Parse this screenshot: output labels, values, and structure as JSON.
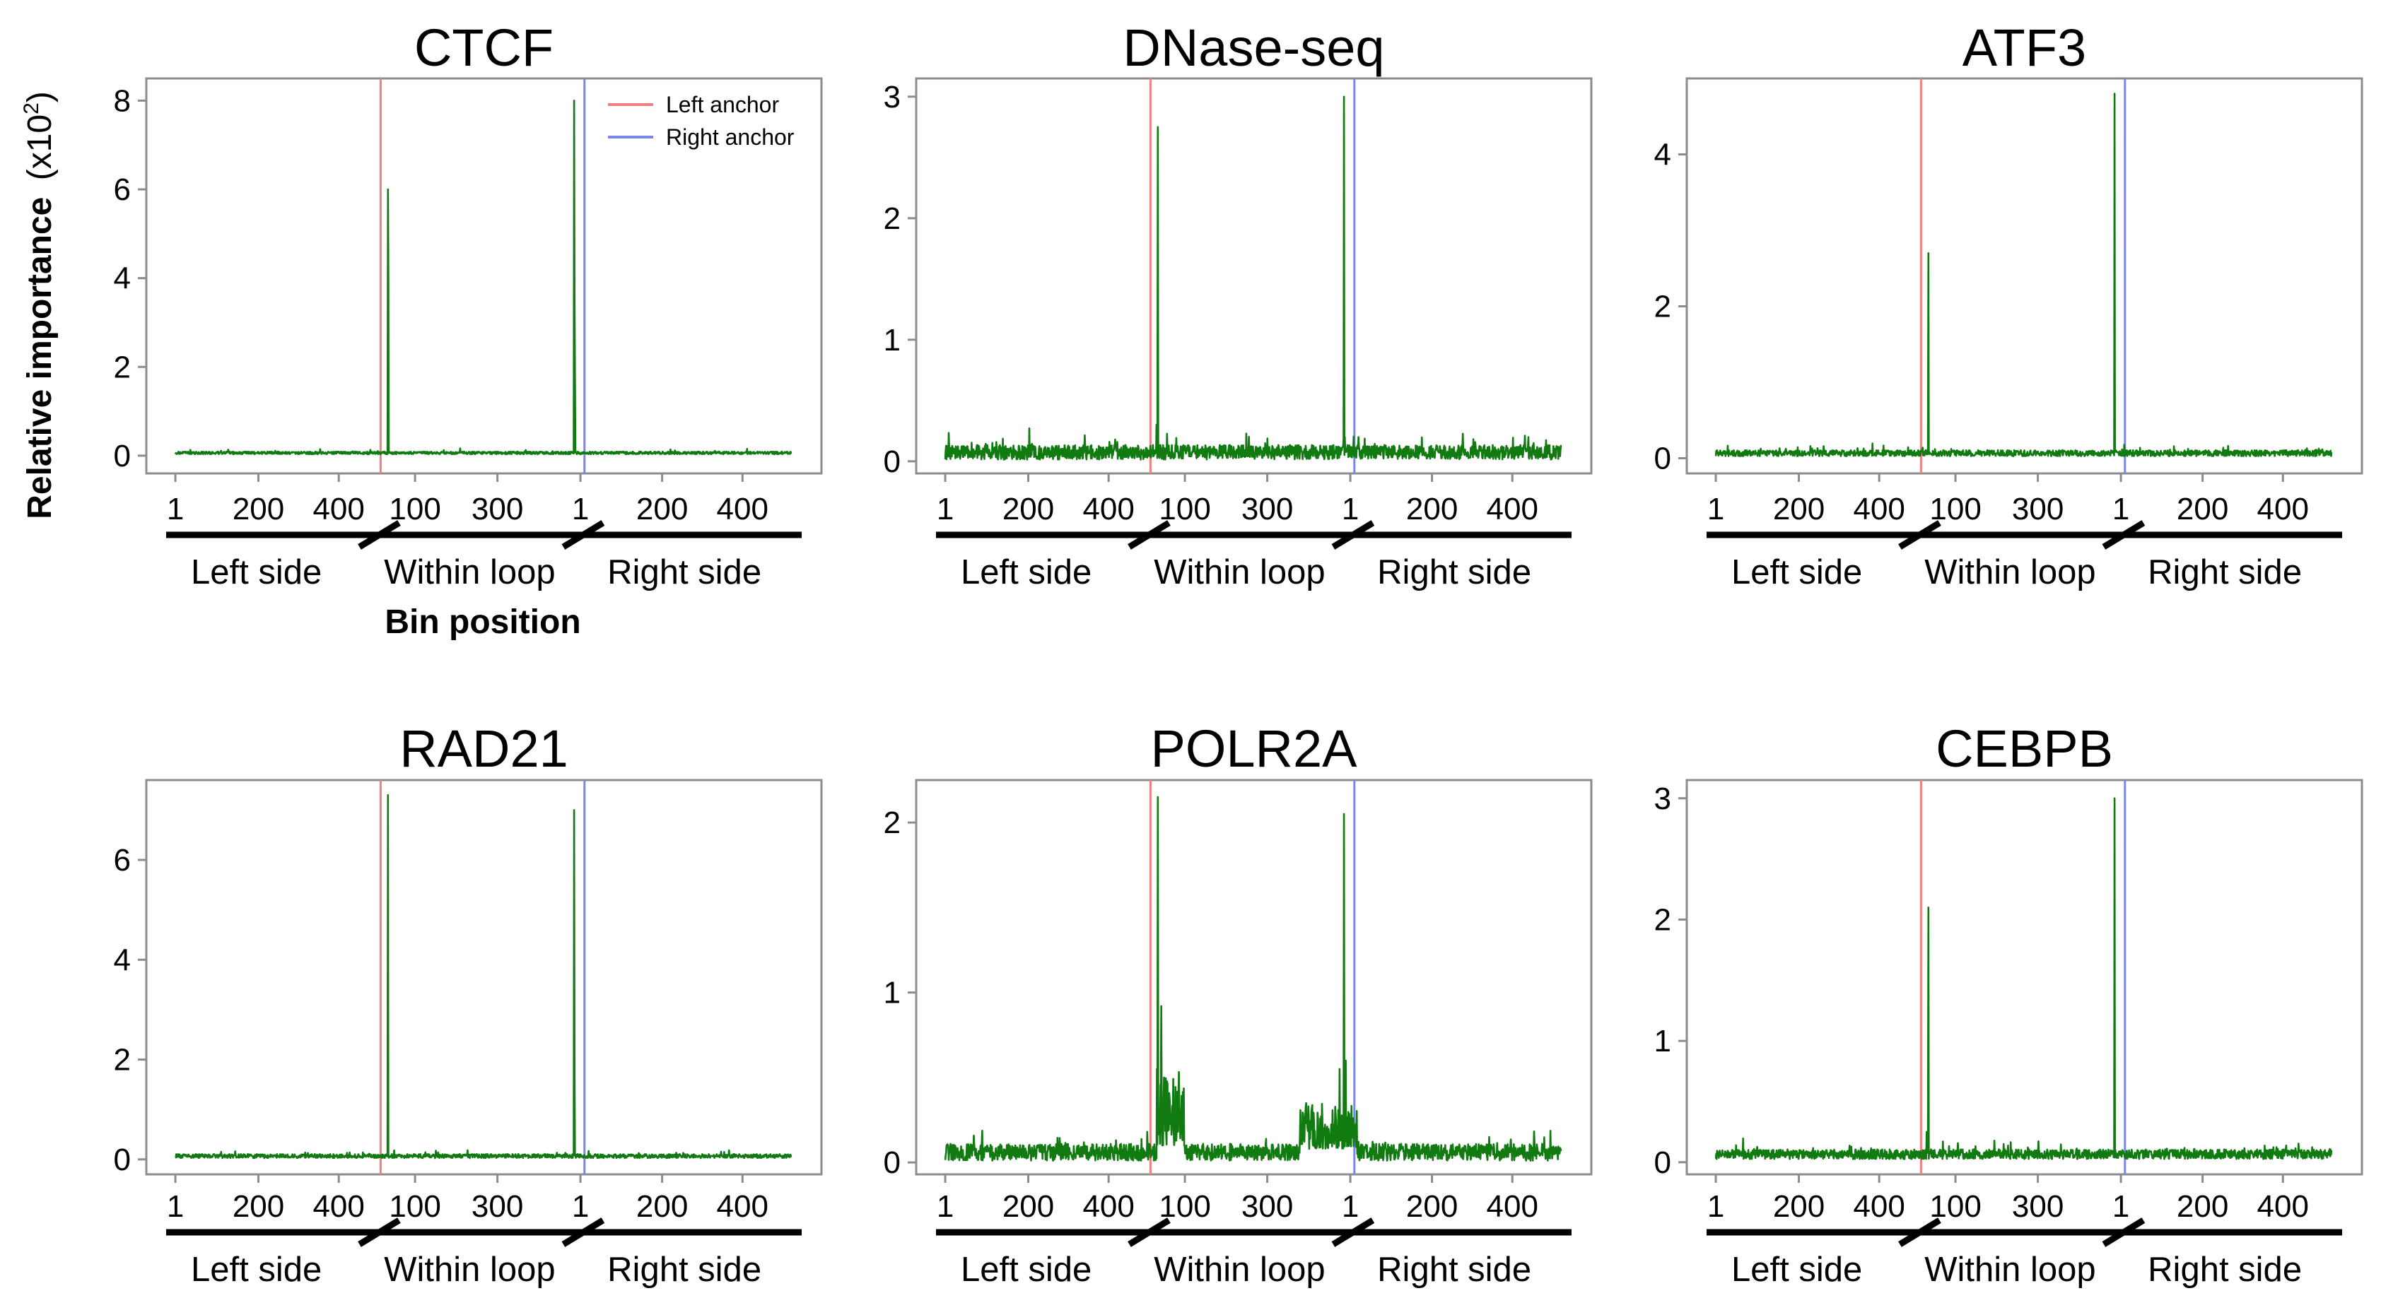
{
  "figure": {
    "ylabel_main": "Relative importance",
    "ylabel_unit": "(x10",
    "ylabel_exp": "2",
    "ylabel_close": ")",
    "xlabel": "Bin position",
    "section_labels": [
      "Left side",
      "Within loop",
      "Right side"
    ],
    "x_tick_labels": [
      "1",
      "200",
      "400",
      "100",
      "300",
      "1",
      "200",
      "400"
    ],
    "legend": [
      {
        "label": "Left anchor",
        "color": "#f08080"
      },
      {
        "label": "Right anchor",
        "color": "#7b86e8"
      }
    ],
    "series_color": "#117a11",
    "frame_color": "#8c8c8c"
  },
  "chart_data": [
    {
      "type": "line",
      "title": "CTCF",
      "ylim": [
        -0.4,
        8.5
      ],
      "yticks": [
        "0",
        "2",
        "4",
        "6",
        "8"
      ],
      "ytick_values": [
        0,
        2,
        4,
        6,
        8
      ],
      "xlabel": "Bin position",
      "baseline": 0.05,
      "noise": 0.03,
      "left_anchor_peak": 6.0,
      "right_anchor_peak": 8.0,
      "secondary_peaks": [
        {
          "offset": 1,
          "value": 4.1
        },
        {
          "offset": 1001,
          "value": 3.6
        },
        {
          "offset": 1002,
          "value": 1.8
        }
      ],
      "shoulders": []
    },
    {
      "type": "line",
      "title": "DNase-seq",
      "ylim": [
        -0.1,
        3.15
      ],
      "yticks": [
        "0",
        "1",
        "2",
        "3"
      ],
      "ytick_values": [
        0,
        1,
        2,
        3
      ],
      "baseline": 0.05,
      "noise": 0.06,
      "left_anchor_peak": 2.75,
      "right_anchor_peak": 3.0,
      "secondary_peaks": [
        {
          "offset": -3,
          "value": 0.3
        },
        {
          "offset": 1002,
          "value": 0.2
        }
      ],
      "shoulders": []
    },
    {
      "type": "line",
      "title": "ATF3",
      "ylim": [
        -0.2,
        5.0
      ],
      "yticks": [
        "0",
        "2",
        "4"
      ],
      "ytick_values": [
        0,
        2,
        4
      ],
      "baseline": 0.05,
      "noise": 0.04,
      "left_anchor_peak": 2.7,
      "right_anchor_peak": 4.8,
      "secondary_peaks": [],
      "shoulders": []
    },
    {
      "type": "line",
      "title": "RAD21",
      "ylim": [
        -0.3,
        7.6
      ],
      "yticks": [
        "0",
        "2",
        "4",
        "6"
      ],
      "ytick_values": [
        0,
        2,
        4,
        6
      ],
      "baseline": 0.05,
      "noise": 0.04,
      "left_anchor_peak": 7.3,
      "right_anchor_peak": 7.0,
      "secondary_peaks": [
        {
          "offset": 1001,
          "value": 1.9
        }
      ],
      "shoulders": []
    },
    {
      "type": "line",
      "title": "POLR2A",
      "ylim": [
        -0.07,
        2.25
      ],
      "yticks": [
        "0",
        "1",
        "2"
      ],
      "ytick_values": [
        0,
        1,
        2
      ],
      "baseline": 0.04,
      "noise": 0.05,
      "left_anchor_peak": 2.15,
      "right_anchor_peak": 2.05,
      "secondary_peaks": [
        {
          "offset": -2,
          "value": 0.55
        },
        {
          "offset": 8,
          "value": 0.92
        },
        {
          "offset": 14,
          "value": 0.5
        },
        {
          "offset": 990,
          "value": 0.55
        },
        {
          "offset": 1004,
          "value": 0.6
        }
      ],
      "shoulders": [
        {
          "start": 0,
          "end": 60,
          "low": 0.1,
          "high": 0.55
        },
        {
          "start": 900,
          "end": 1030,
          "low": 0.08,
          "high": 0.35
        }
      ]
    },
    {
      "type": "line",
      "title": "CEBPB",
      "ylim": [
        -0.1,
        3.15
      ],
      "yticks": [
        "0",
        "1",
        "2",
        "3"
      ],
      "ytick_values": [
        0,
        1,
        2,
        3
      ],
      "baseline": 0.05,
      "noise": 0.04,
      "left_anchor_peak": 2.1,
      "right_anchor_peak": 3.0,
      "secondary_peaks": [
        {
          "offset": -4,
          "value": 0.25
        },
        {
          "offset": 1002,
          "value": 0.1
        }
      ],
      "shoulders": []
    }
  ]
}
